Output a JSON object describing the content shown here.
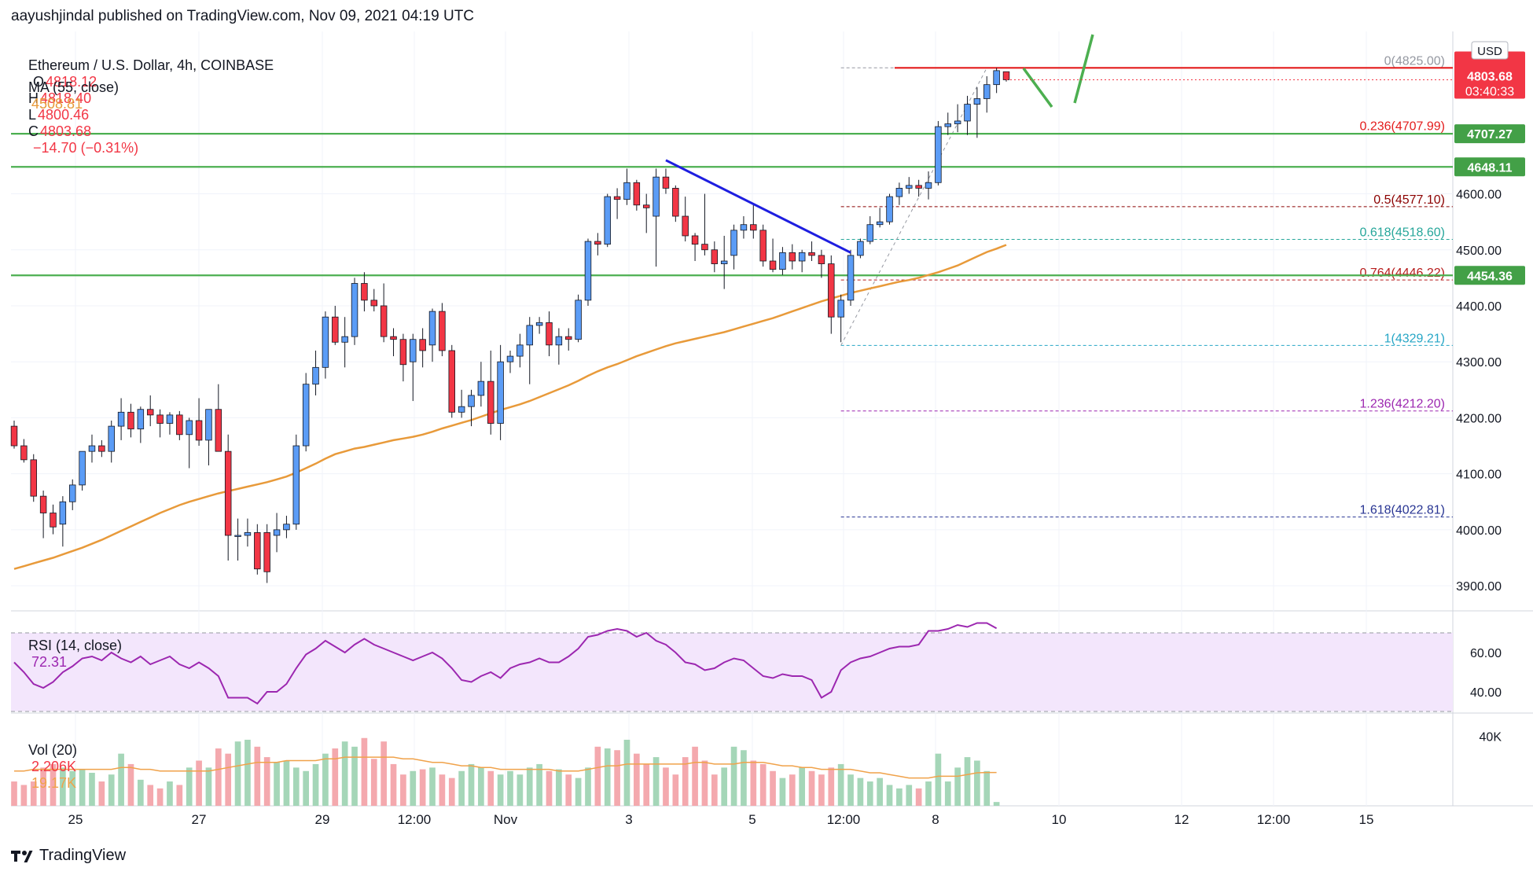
{
  "header": {
    "publisher": "aayushjindal published on TradingView.com, Nov 09, 2021 04:19 UTC"
  },
  "legend": {
    "symbol": "Ethereum / U.S. Dollar, 4h, COINBASE",
    "ohlc": [
      {
        "key": "O",
        "value": "4818.12"
      },
      {
        "key": "H",
        "value": "4818.40"
      },
      {
        "key": "L",
        "value": "4800.46"
      },
      {
        "key": "C",
        "value": "4803.68"
      }
    ],
    "change": "−14.70 (−0.31%)",
    "ma_label": "MA (55, close)",
    "ma_value": "4508.81"
  },
  "rsi_legend": {
    "label": "RSI (14, close)",
    "value": "72.31"
  },
  "vol_legend": {
    "label": "Vol (20)",
    "value1": "2.206K",
    "value2": "19.17K"
  },
  "watermark": {
    "text": "TradingView"
  },
  "colors": {
    "up": "#5b9cf6",
    "down": "#f23645",
    "ma": "#e89a3a",
    "support": "#4caf50",
    "trendline": "#1e1ee0",
    "resistance": "#e31c1c",
    "rsi_line": "#9c27b0",
    "rsi_band": "#f3e6fc",
    "vol_up": "#a5d6b8",
    "vol_down": "#f4a9ae",
    "vol_ma": "#f0a24a",
    "current_price_bg": "#f23645",
    "level_badge_bg": "#43a047"
  },
  "chart_data": [
    {
      "type": "candlestick",
      "title": "Ethereum / U.S. Dollar, 4h, COINBASE",
      "currency": "USD",
      "interval": "4h",
      "x_ticks": [
        "25",
        "27",
        "29",
        "12:00",
        "Nov",
        "3",
        "5",
        "12:00",
        "8",
        "10",
        "12",
        "12:00",
        "15"
      ],
      "y_ticks": [
        "3900.00",
        "4000.00",
        "4100.00",
        "4200.00",
        "4300.00",
        "4400.00",
        "4500.00",
        "4600.00"
      ],
      "ylim": [
        3858,
        4890
      ],
      "candles": [
        [
          4185,
          4195,
          4145,
          4150
        ],
        [
          4150,
          4162,
          4120,
          4125
        ],
        [
          4125,
          4135,
          4050,
          4060
        ],
        [
          4060,
          4070,
          3985,
          4030
        ],
        [
          4030,
          4045,
          3992,
          4005
        ],
        [
          4010,
          4060,
          3970,
          4050
        ],
        [
          4050,
          4090,
          4035,
          4080
        ],
        [
          4080,
          4140,
          4070,
          4140
        ],
        [
          4140,
          4170,
          4120,
          4150
        ],
        [
          4150,
          4160,
          4130,
          4140
        ],
        [
          4140,
          4195,
          4120,
          4185
        ],
        [
          4185,
          4235,
          4160,
          4210
        ],
        [
          4210,
          4225,
          4165,
          4180
        ],
        [
          4180,
          4220,
          4155,
          4215
        ],
        [
          4215,
          4240,
          4185,
          4205
        ],
        [
          4205,
          4215,
          4165,
          4190
        ],
        [
          4190,
          4210,
          4170,
          4205
        ],
        [
          4205,
          4212,
          4160,
          4170
        ],
        [
          4170,
          4200,
          4110,
          4195
        ],
        [
          4195,
          4235,
          4150,
          4160
        ],
        [
          4160,
          4210,
          4115,
          4215
        ],
        [
          4215,
          4260,
          4140,
          4140
        ],
        [
          4140,
          4170,
          3945,
          3990
        ],
        [
          3990,
          4020,
          3945,
          3990
        ],
        [
          3990,
          4020,
          3970,
          3995
        ],
        [
          3995,
          4010,
          3920,
          3930
        ],
        [
          3995,
          4010,
          3905,
          3925
        ],
        [
          3990,
          4030,
          3960,
          4000
        ],
        [
          4000,
          4025,
          3985,
          4010
        ],
        [
          4010,
          4170,
          4000,
          4150
        ],
        [
          4150,
          4280,
          4140,
          4260
        ],
        [
          4260,
          4320,
          4240,
          4290
        ],
        [
          4290,
          4390,
          4270,
          4380
        ],
        [
          4380,
          4400,
          4330,
          4335
        ],
        [
          4335,
          4380,
          4290,
          4345
        ],
        [
          4345,
          4450,
          4330,
          4440
        ],
        [
          4440,
          4460,
          4390,
          4410
        ],
        [
          4410,
          4430,
          4390,
          4400
        ],
        [
          4400,
          4440,
          4335,
          4345
        ],
        [
          4345,
          4360,
          4310,
          4340
        ],
        [
          4340,
          4350,
          4265,
          4295
        ],
        [
          4300,
          4350,
          4230,
          4340
        ],
        [
          4340,
          4360,
          4290,
          4320
        ],
        [
          4330,
          4395,
          4300,
          4390
        ],
        [
          4390,
          4405,
          4310,
          4320
        ],
        [
          4320,
          4330,
          4200,
          4210
        ],
        [
          4210,
          4250,
          4200,
          4220
        ],
        [
          4220,
          4250,
          4185,
          4240
        ],
        [
          4240,
          4300,
          4220,
          4265
        ],
        [
          4265,
          4320,
          4170,
          4190
        ],
        [
          4190,
          4330,
          4160,
          4300
        ],
        [
          4300,
          4320,
          4280,
          4310
        ],
        [
          4310,
          4350,
          4290,
          4330
        ],
        [
          4330,
          4380,
          4260,
          4365
        ],
        [
          4365,
          4380,
          4350,
          4370
        ],
        [
          4370,
          4390,
          4310,
          4330
        ],
        [
          4330,
          4360,
          4295,
          4345
        ],
        [
          4345,
          4360,
          4320,
          4340
        ],
        [
          4340,
          4420,
          4335,
          4410
        ],
        [
          4410,
          4520,
          4400,
          4515
        ],
        [
          4515,
          4530,
          4490,
          4510
        ],
        [
          4510,
          4600,
          4505,
          4595
        ],
        [
          4595,
          4610,
          4555,
          4590
        ],
        [
          4590,
          4645,
          4580,
          4620
        ],
        [
          4620,
          4625,
          4570,
          4580
        ],
        [
          4580,
          4600,
          4530,
          4575
        ],
        [
          4560,
          4645,
          4470,
          4630
        ],
        [
          4630,
          4645,
          4600,
          4610
        ],
        [
          4610,
          4615,
          4550,
          4560
        ],
        [
          4560,
          4595,
          4515,
          4525
        ],
        [
          4525,
          4530,
          4480,
          4510
        ],
        [
          4510,
          4600,
          4490,
          4500
        ],
        [
          4500,
          4515,
          4460,
          4475
        ],
        [
          4475,
          4525,
          4430,
          4480
        ],
        [
          4490,
          4545,
          4465,
          4535
        ],
        [
          4535,
          4560,
          4520,
          4545
        ],
        [
          4545,
          4580,
          4520,
          4535
        ],
        [
          4535,
          4545,
          4470,
          4480
        ],
        [
          4480,
          4520,
          4460,
          4465
        ],
        [
          4465,
          4505,
          4455,
          4495
        ],
        [
          4495,
          4510,
          4465,
          4480
        ],
        [
          4480,
          4500,
          4460,
          4495
        ],
        [
          4495,
          4515,
          4480,
          4490
        ],
        [
          4490,
          4500,
          4450,
          4475
        ],
        [
          4475,
          4490,
          4350,
          4380
        ],
        [
          4380,
          4420,
          4335,
          4410
        ],
        [
          4410,
          4500,
          4400,
          4490
        ],
        [
          4490,
          4520,
          4485,
          4515
        ],
        [
          4515,
          4560,
          4510,
          4545
        ],
        [
          4545,
          4575,
          4540,
          4550
        ],
        [
          4550,
          4600,
          4545,
          4595
        ],
        [
          4595,
          4620,
          4580,
          4610
        ],
        [
          4610,
          4630,
          4600,
          4615
        ],
        [
          4615,
          4625,
          4595,
          4610
        ],
        [
          4610,
          4640,
          4590,
          4620
        ],
        [
          4620,
          4730,
          4615,
          4720
        ],
        [
          4720,
          4745,
          4705,
          4725
        ],
        [
          4725,
          4760,
          4710,
          4730
        ],
        [
          4730,
          4775,
          4705,
          4760
        ],
        [
          4760,
          4790,
          4700,
          4770
        ],
        [
          4770,
          4810,
          4745,
          4795
        ],
        [
          4795,
          4825,
          4780,
          4820
        ],
        [
          4818.12,
          4818.4,
          4800.46,
          4803.68
        ]
      ],
      "ma_label": "MA (55, close)",
      "ma_value": 4508.81,
      "ma_values": [
        3930,
        3935,
        3940,
        3945,
        3950,
        3956,
        3962,
        3968,
        3975,
        3982,
        3990,
        3998,
        4006,
        4014,
        4022,
        4030,
        4037,
        4044,
        4050,
        4055,
        4060,
        4065,
        4069,
        4073,
        4077,
        4081,
        4085,
        4090,
        4095,
        4102,
        4110,
        4118,
        4127,
        4135,
        4140,
        4145,
        4148,
        4152,
        4156,
        4160,
        4163,
        4166,
        4170,
        4175,
        4181,
        4186,
        4191,
        4196,
        4202,
        4208,
        4214,
        4219,
        4224,
        4230,
        4237,
        4244,
        4251,
        4258,
        4266,
        4275,
        4283,
        4290,
        4296,
        4303,
        4310,
        4316,
        4322,
        4328,
        4333,
        4337,
        4341,
        4345,
        4349,
        4353,
        4358,
        4363,
        4368,
        4373,
        4378,
        4384,
        4390,
        4396,
        4402,
        4408,
        4413,
        4418,
        4423,
        4427,
        4431,
        4435,
        4439,
        4443,
        4446,
        4450,
        4455,
        4460,
        4466,
        4472,
        4480,
        4488,
        4496,
        4502,
        4508.81
      ],
      "current_price": 4803.68,
      "countdown": "03:40:33",
      "support_levels": [
        4707.27,
        4648.11,
        4454.36
      ],
      "price_badges": [
        "4707.27",
        "4648.11",
        "4454.36"
      ],
      "resistance_level": 4825,
      "trendline": {
        "start": [
          67,
          4660
        ],
        "end": [
          86,
          4495
        ]
      },
      "fibonacci": {
        "anchor_index": 85,
        "levels": [
          {
            "label": "0(4825.00)",
            "value": 4825.0,
            "color": "#9598a1"
          },
          {
            "label": "0.236(4707.99)",
            "value": 4707.99,
            "color": "#e31c1c"
          },
          {
            "label": "0.5(4577.10)",
            "value": 4577.1,
            "color": "#8b0000"
          },
          {
            "label": "0.618(4518.60)",
            "value": 4518.6,
            "color": "#26a69a"
          },
          {
            "label": "0.764(4446.22)",
            "value": 4446.22,
            "color": "#b71c1c"
          },
          {
            "label": "1(4329.21)",
            "value": 4329.21,
            "color": "#26a6c6"
          },
          {
            "label": "1.236(4212.20)",
            "value": 4212.2,
            "color": "#9c27b0"
          },
          {
            "label": "1.618(4022.81)",
            "value": 4022.81,
            "color": "#283593"
          }
        ]
      }
    },
    {
      "type": "line",
      "title": "RSI (14, close)",
      "y_ticks": [
        "60.00",
        "40.00"
      ],
      "ylim": [
        30,
        80
      ],
      "bands": [
        70,
        30
      ],
      "values": [
        55,
        50,
        44,
        42,
        45,
        50,
        53,
        57,
        58,
        56,
        60,
        57,
        55,
        58,
        54,
        56,
        58,
        54,
        52,
        55,
        52,
        48,
        37,
        37,
        37,
        34,
        40,
        40,
        44,
        52,
        59,
        62,
        66,
        63,
        60,
        64,
        67,
        64,
        62,
        60,
        58,
        56,
        58,
        60,
        57,
        52,
        46,
        45,
        48,
        50,
        47,
        52,
        54,
        55,
        57,
        55,
        55,
        58,
        62,
        68,
        69,
        71,
        72,
        71,
        68,
        70,
        66,
        64,
        60,
        55,
        54,
        51,
        52,
        55,
        57,
        56,
        52,
        48,
        47,
        49,
        48,
        48,
        46,
        37,
        40,
        51,
        55,
        57,
        58,
        60,
        62,
        63,
        63,
        64,
        71,
        71,
        72,
        74,
        73,
        75,
        75,
        72.31
      ]
    },
    {
      "type": "bar",
      "title": "Vol (20)",
      "y_ticks": [
        "40K"
      ],
      "ylim": [
        0,
        52000
      ],
      "values": [
        14,
        12,
        14,
        22,
        24,
        22,
        20,
        21,
        19,
        14,
        18,
        30,
        24,
        15,
        12,
        10,
        14,
        12,
        22,
        26,
        22,
        33,
        30,
        37,
        38,
        34,
        28,
        25,
        26,
        22,
        20,
        24,
        30,
        33,
        37,
        34,
        39,
        27,
        37,
        24,
        18,
        20,
        21,
        22,
        18,
        16,
        20,
        24,
        22,
        20,
        18,
        20,
        18,
        22,
        24,
        20,
        21,
        18,
        16,
        22,
        34,
        33,
        32,
        38,
        30,
        24,
        28,
        22,
        18,
        28,
        34,
        26,
        18,
        22,
        34,
        32,
        26,
        24,
        20,
        16,
        18,
        22,
        20,
        18,
        22,
        24,
        18,
        16,
        14,
        16,
        12,
        10,
        12,
        10,
        14,
        30,
        14,
        22,
        28,
        26,
        20,
        2.2
      ],
      "ma_values": [
        20,
        20,
        21,
        21,
        21,
        21,
        21,
        21,
        21,
        21,
        21,
        22,
        22,
        21,
        21,
        20,
        20,
        20,
        20,
        20,
        20,
        21,
        22,
        23,
        24,
        25,
        25,
        25,
        26,
        26,
        26,
        26,
        27,
        27,
        28,
        28,
        28,
        28,
        28,
        28,
        27,
        27,
        26,
        25,
        25,
        24,
        23,
        23,
        22,
        22,
        21,
        21,
        21,
        21,
        21,
        21,
        20,
        20,
        20,
        21,
        22,
        23,
        23,
        24,
        24,
        24,
        24,
        24,
        24,
        24,
        25,
        25,
        24,
        24,
        24,
        25,
        25,
        25,
        24,
        23,
        23,
        22,
        22,
        21,
        21,
        21,
        21,
        20,
        19,
        19,
        18,
        17,
        16,
        16,
        16,
        17,
        17,
        17,
        18,
        19,
        19.17,
        19.17
      ],
      "volume_value": "2.206K",
      "ma_value": "19.17K",
      "volume_unit": "K"
    }
  ]
}
